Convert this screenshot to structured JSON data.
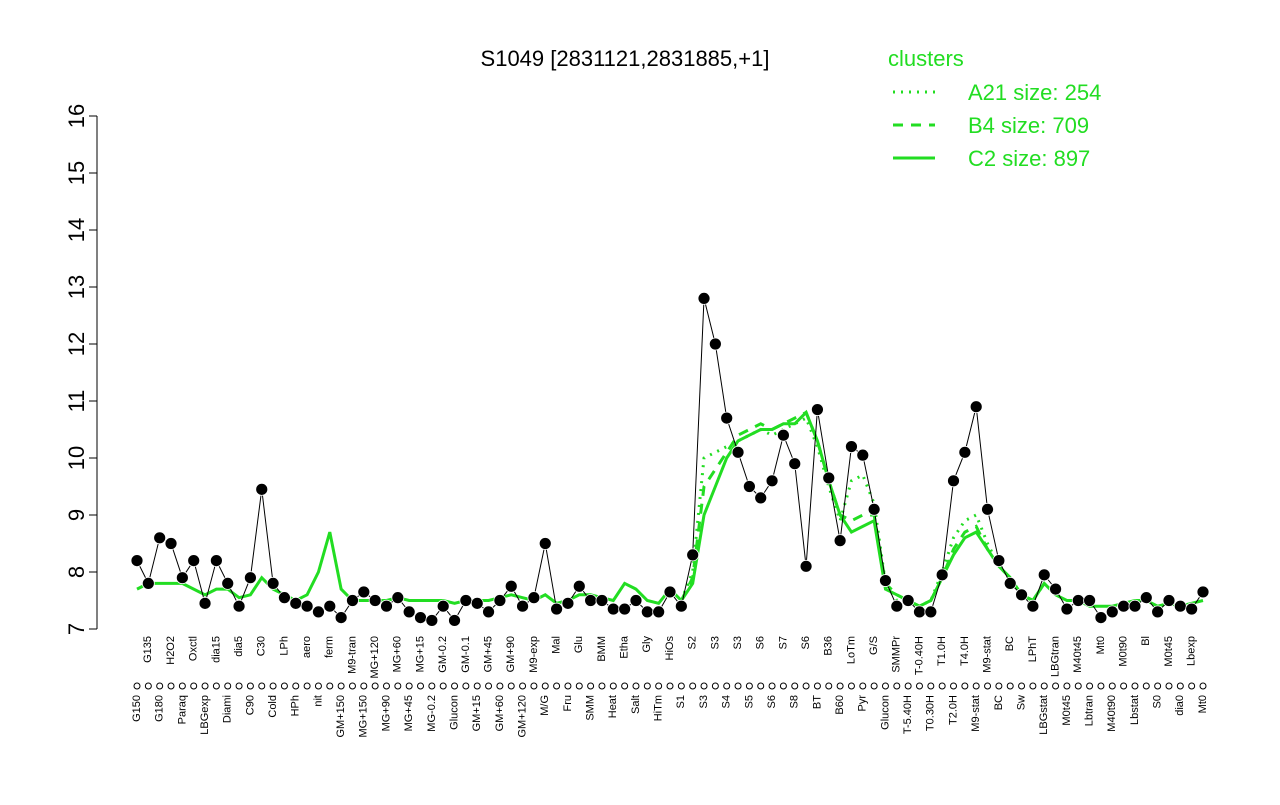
{
  "chart_data": {
    "type": "line",
    "title": "S1049 [2831121,2831885,+1]",
    "legend_title": "clusters",
    "legend_position": "top-right",
    "categories": [
      "G150",
      "G135",
      "G180",
      "H2O2",
      "Paraq",
      "Oxctl",
      "LBGexp",
      "dia15",
      "Diami",
      "dia5",
      "C90",
      "C30",
      "Cold",
      "LPh",
      "HPh",
      "aero",
      "nit",
      "ferm",
      "GM+150",
      "M9-tran",
      "MG+150",
      "MG+120",
      "MG+90",
      "MG+60",
      "MG+45",
      "MG+15",
      "MG-0.2",
      "GM-0.2",
      "Glucon",
      "GM-0.1",
      "GM+15",
      "GM+45",
      "GM+60",
      "GM+90",
      "GM+120",
      "M9-exp",
      "M/G",
      "Mal",
      "Fru",
      "Glu",
      "SMM",
      "BMM",
      "Heat",
      "Etha",
      "Salt",
      "Gly",
      "HiTm",
      "HiOs",
      "S1",
      "S2",
      "S3",
      "S3",
      "S4",
      "S3",
      "S5",
      "S6",
      "S6",
      "S7",
      "S8",
      "S6",
      "BT",
      "B36",
      "B60",
      "LoTm",
      "Pyr",
      "G/S",
      "Glucon",
      "SMMPr",
      "T-5.40H",
      "T-0.40H",
      "T0.30H",
      "T1.0H",
      "T2.0H",
      "T4.0H",
      "M9-stat",
      "M9-stat",
      "BC",
      "BC",
      "Sw",
      "LPhT",
      "LBGstat",
      "LBGtran",
      "M0t45",
      "M40t45",
      "Lbtran",
      "Mt0",
      "M40t90",
      "M0t90",
      "Lbstat",
      "Bl",
      "S0",
      "M0t45",
      "dia0",
      "Lbexp",
      "Mt0"
    ],
    "values": [
      8.2,
      7.8,
      8.6,
      8.5,
      7.9,
      8.2,
      7.45,
      8.2,
      7.8,
      7.4,
      7.9,
      9.45,
      7.8,
      7.55,
      7.45,
      7.4,
      7.3,
      7.4,
      7.2,
      7.5,
      7.65,
      7.5,
      7.4,
      7.55,
      7.3,
      7.2,
      7.15,
      7.4,
      7.15,
      7.5,
      7.45,
      7.3,
      7.5,
      7.75,
      7.4,
      7.55,
      8.5,
      7.35,
      7.45,
      7.75,
      7.5,
      7.5,
      7.35,
      7.35,
      7.5,
      7.3,
      7.3,
      7.65,
      7.4,
      8.3,
      12.8,
      12.0,
      10.7,
      10.1,
      9.5,
      9.3,
      9.6,
      10.4,
      9.9,
      8.1,
      10.85,
      9.65,
      8.55,
      10.2,
      10.05,
      9.1,
      7.85,
      7.4,
      7.5,
      7.3,
      7.3,
      7.95,
      9.6,
      10.1,
      10.9,
      9.1,
      8.2,
      7.8,
      7.6,
      7.4,
      7.95,
      7.7,
      7.35,
      7.5,
      7.5,
      7.2,
      7.3,
      7.4,
      7.4,
      7.55,
      7.3,
      7.5,
      7.4,
      7.35,
      7.65
    ],
    "color": "#000000",
    "series": [
      {
        "name": "A21 size: 254",
        "color": "#22dd22",
        "dash": "dotted",
        "values": [
          null,
          null,
          null,
          null,
          null,
          null,
          null,
          null,
          null,
          null,
          null,
          null,
          null,
          null,
          null,
          null,
          null,
          null,
          null,
          null,
          null,
          null,
          null,
          null,
          null,
          null,
          null,
          null,
          null,
          null,
          null,
          null,
          null,
          null,
          null,
          null,
          null,
          null,
          null,
          null,
          null,
          null,
          null,
          null,
          null,
          null,
          null,
          null,
          7.5,
          8.0,
          10.0,
          10.1,
          10.2,
          10.3,
          10.4,
          10.5,
          10.4,
          10.5,
          10.6,
          10.7,
          10.2,
          9.5,
          8.9,
          9.6,
          9.7,
          9.2,
          7.8,
          7.5,
          7.5,
          7.4,
          7.5,
          8.0,
          8.6,
          8.9,
          9.0,
          8.5,
          8.1,
          7.9,
          7.6,
          7.5,
          7.8,
          null,
          null,
          null,
          null,
          null,
          null,
          null,
          null,
          null,
          null,
          null,
          null,
          null,
          null
        ]
      },
      {
        "name": "B4 size: 709",
        "color": "#22dd22",
        "dash": "dashed",
        "values": [
          null,
          null,
          null,
          null,
          null,
          null,
          null,
          null,
          null,
          null,
          null,
          null,
          null,
          null,
          null,
          null,
          null,
          null,
          null,
          null,
          null,
          null,
          null,
          null,
          null,
          null,
          null,
          null,
          null,
          null,
          null,
          null,
          null,
          null,
          null,
          null,
          null,
          null,
          null,
          null,
          null,
          null,
          null,
          null,
          null,
          null,
          null,
          null,
          7.5,
          7.9,
          9.5,
          9.8,
          10.1,
          10.4,
          10.5,
          10.6,
          10.5,
          10.6,
          10.7,
          10.8,
          10.3,
          9.6,
          9.0,
          8.9,
          9.0,
          9.0,
          7.8,
          7.6,
          7.5,
          7.4,
          7.5,
          7.9,
          8.4,
          8.7,
          8.8,
          8.4,
          8.1,
          7.9,
          7.6,
          7.5,
          7.8,
          null,
          null,
          null,
          null,
          null,
          null,
          null,
          null,
          null,
          null,
          null,
          null,
          null,
          null
        ]
      },
      {
        "name": "C2 size: 897",
        "color": "#22dd22",
        "dash": "solid",
        "values": [
          7.7,
          7.8,
          7.8,
          7.8,
          7.8,
          7.7,
          7.6,
          7.7,
          7.7,
          7.55,
          7.6,
          7.9,
          7.7,
          7.6,
          7.5,
          7.6,
          8.0,
          8.7,
          7.7,
          7.5,
          7.5,
          7.5,
          7.5,
          7.55,
          7.5,
          7.5,
          7.5,
          7.5,
          7.45,
          7.5,
          7.5,
          7.5,
          7.55,
          7.6,
          7.55,
          7.5,
          7.6,
          7.45,
          7.5,
          7.6,
          7.6,
          7.55,
          7.5,
          7.8,
          7.7,
          7.5,
          7.45,
          7.7,
          7.5,
          7.8,
          9.0,
          9.5,
          10.0,
          10.3,
          10.4,
          10.5,
          10.5,
          10.6,
          10.6,
          10.8,
          10.3,
          9.6,
          9.0,
          8.7,
          8.8,
          8.9,
          7.7,
          7.6,
          7.5,
          7.4,
          7.5,
          7.9,
          8.3,
          8.6,
          8.7,
          8.4,
          8.1,
          7.9,
          7.6,
          7.5,
          7.8,
          7.6,
          7.5,
          7.5,
          7.4,
          7.4,
          7.4,
          7.45,
          7.5,
          7.5,
          7.4,
          7.45,
          7.4,
          7.45,
          7.5
        ]
      }
    ],
    "ylim": [
      7,
      16
    ],
    "yticks": [
      7,
      8,
      9,
      10,
      11,
      12,
      13,
      14,
      15,
      16
    ]
  }
}
